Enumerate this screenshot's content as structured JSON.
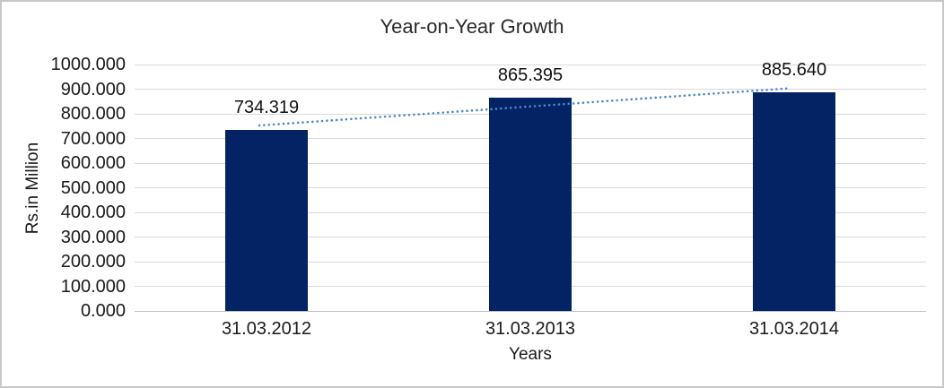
{
  "chart_data": {
    "type": "bar",
    "title": "Year-on-Year Growth",
    "xlabel": "Years",
    "ylabel": "Rs.in Million",
    "categories": [
      "31.03.2012",
      "31.03.2013",
      "31.03.2014"
    ],
    "values": [
      734.319,
      865.395,
      885.64
    ],
    "value_labels": [
      "734.319",
      "865.395",
      "885.640"
    ],
    "y_ticks": [
      "1000.000",
      "900.000",
      "800.000",
      "700.000",
      "600.000",
      "500.000",
      "400.000",
      "300.000",
      "200.000",
      "100.000",
      "0.000"
    ],
    "ylim": [
      0,
      1000
    ],
    "grid": true,
    "legend": "none",
    "bar_color": "#032365",
    "trendline": {
      "type": "linear",
      "style": "dotted",
      "color": "#4f87c9"
    },
    "colors": {
      "gridline": "#d9d9d9",
      "axis_line": "#bfbfbf",
      "text": "#1a1a1a",
      "frame_border": "#c7c7c7",
      "background": "#ffffff"
    }
  }
}
